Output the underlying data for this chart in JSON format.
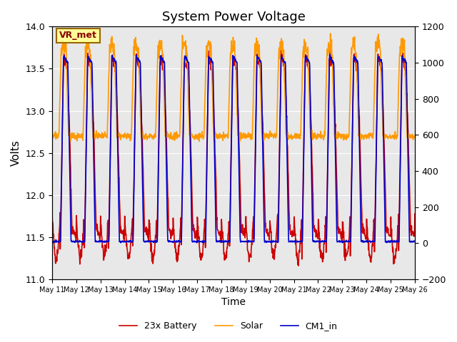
{
  "title": "System Power Voltage",
  "xlabel": "Time",
  "ylabel": "Volts",
  "ylim_left": [
    11.0,
    14.0
  ],
  "ylim_right": [
    -200,
    1200
  ],
  "yticks_left": [
    11.0,
    11.5,
    12.0,
    12.5,
    13.0,
    13.5,
    14.0
  ],
  "yticks_right": [
    -200,
    0,
    200,
    400,
    600,
    800,
    1000,
    1200
  ],
  "xtick_labels": [
    "May 11",
    "May 12",
    "May 13",
    "May 14",
    "May 15",
    "May 16",
    "May 17",
    "May 18",
    "May 19",
    "May 20",
    "May 21",
    "May 22",
    "May 23",
    "May 24",
    "May 25",
    "May 26"
  ],
  "n_days": 15,
  "color_battery": "#cc0000",
  "color_solar": "#ff9900",
  "color_cm1": "#0000cc",
  "legend_labels": [
    "23x Battery",
    "Solar",
    "CM1_in"
  ],
  "vr_met_label": "VR_met",
  "background_color": "#e8e8e8",
  "linewidth": 1.2
}
